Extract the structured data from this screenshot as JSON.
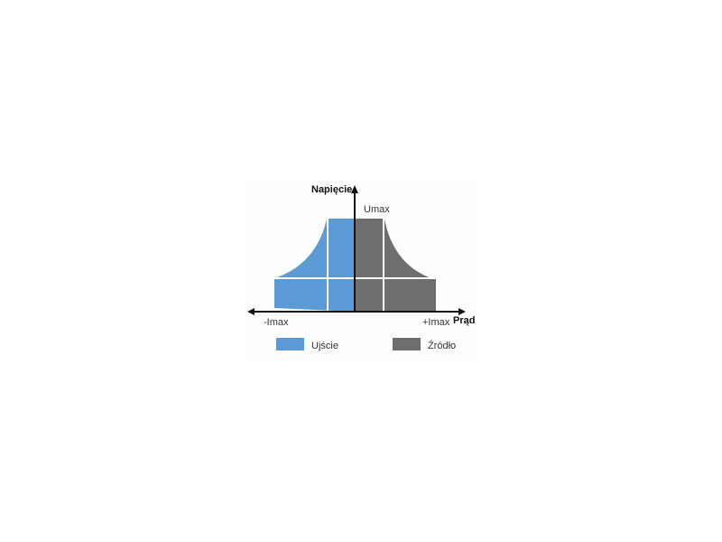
{
  "diagram": {
    "y_axis_label": "Napięcie",
    "x_axis_label": "Prąd",
    "umax_label": "Umax",
    "neg_imax_label": "-Imax",
    "pos_imax_label": "+Imax",
    "legend": [
      {
        "label": "Ujście",
        "color": "#5b9bd5"
      },
      {
        "label": "Źródło",
        "color": "#6e6e6e"
      }
    ]
  }
}
